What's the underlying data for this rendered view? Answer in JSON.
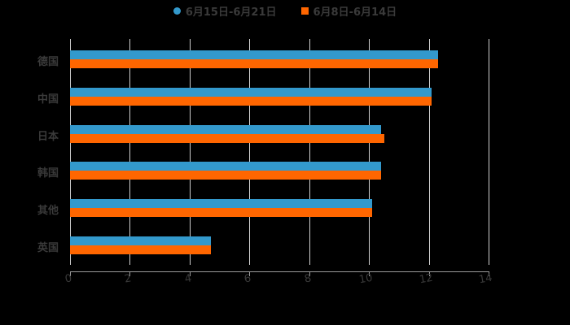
{
  "chart_data": {
    "type": "bar",
    "orientation": "horizontal",
    "title": "",
    "xlabel": "",
    "ylabel": "",
    "xlim": [
      0,
      14
    ],
    "x_ticks": [
      "0",
      "2",
      "4",
      "6",
      "8",
      "10",
      "12",
      "14"
    ],
    "grid": true,
    "legend_position": "top",
    "categories": [
      "德国",
      "中国",
      "日本",
      "韩国",
      "其他",
      "英国"
    ],
    "series": [
      {
        "name": "6月15日-6月21日",
        "color": "#3399cc",
        "values": [
          12.3,
          12.1,
          10.4,
          10.4,
          10.1,
          4.7
        ]
      },
      {
        "name": "6月8日-6月14日",
        "color": "#ff6600",
        "values": [
          12.3,
          12.1,
          10.5,
          10.4,
          10.1,
          4.7
        ]
      }
    ]
  },
  "legend": {
    "items": [
      {
        "label": "6月15日-6月21日",
        "shape": "circle",
        "color": "#3399cc"
      },
      {
        "label": "6月8日-6月14日",
        "shape": "square",
        "color": "#ff6600"
      }
    ]
  }
}
